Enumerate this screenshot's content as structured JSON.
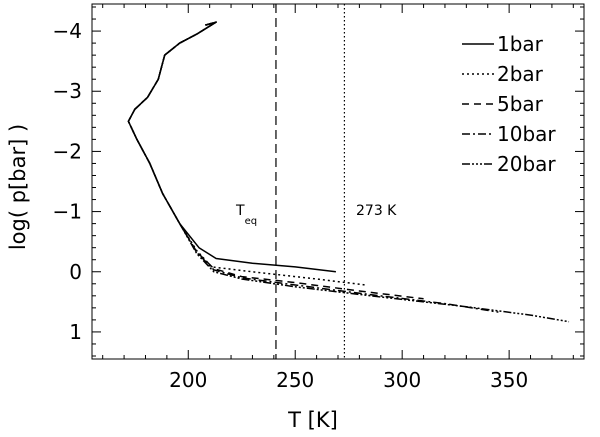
{
  "chart_data": {
    "type": "line",
    "xlabel": "T [K]",
    "ylabel": "log( p[bar] )",
    "xlim": [
      155,
      385
    ],
    "ylim": [
      1.45,
      -4.45
    ],
    "x_ticks": [
      200,
      250,
      300,
      350
    ],
    "y_ticks": [
      -4,
      -3,
      -2,
      -1,
      0,
      1
    ],
    "x_tick_labels": [
      "200",
      "250",
      "300",
      "350"
    ],
    "y_tick_labels": [
      "−4",
      "−3",
      "−2",
      "−1",
      "0",
      "1"
    ],
    "legend_position": "top-right",
    "reference_lines": [
      {
        "label_main": "T",
        "label_sub": "eq",
        "x": 241,
        "style": "dashed"
      },
      {
        "label_main": "273 K",
        "x": 273,
        "style": "dotted"
      }
    ],
    "series": [
      {
        "name": "1bar",
        "dash": "none",
        "points": [
          [
            208,
            -4.1
          ],
          [
            213,
            -4.15
          ],
          [
            204,
            -3.95
          ],
          [
            196,
            -3.8
          ],
          [
            189,
            -3.6
          ],
          [
            186,
            -3.2
          ],
          [
            181,
            -2.9
          ],
          [
            175,
            -2.7
          ],
          [
            172,
            -2.5
          ],
          [
            176,
            -2.2
          ],
          [
            182,
            -1.8
          ],
          [
            188,
            -1.3
          ],
          [
            196,
            -0.8
          ],
          [
            205,
            -0.4
          ],
          [
            213,
            -0.22
          ],
          [
            230,
            -0.14
          ],
          [
            250,
            -0.08
          ],
          [
            269,
            0.0
          ]
        ]
      },
      {
        "name": "2bar",
        "dash": "2,3",
        "points": [
          [
            208,
            -4.1
          ],
          [
            213,
            -4.15
          ],
          [
            204,
            -3.95
          ],
          [
            196,
            -3.8
          ],
          [
            189,
            -3.6
          ],
          [
            186,
            -3.2
          ],
          [
            181,
            -2.9
          ],
          [
            175,
            -2.7
          ],
          [
            172,
            -2.5
          ],
          [
            176,
            -2.2
          ],
          [
            182,
            -1.8
          ],
          [
            188,
            -1.3
          ],
          [
            196,
            -0.8
          ],
          [
            204,
            -0.35
          ],
          [
            211,
            -0.08
          ],
          [
            230,
            0.0
          ],
          [
            260,
            0.12
          ],
          [
            283,
            0.22
          ]
        ]
      },
      {
        "name": "5bar",
        "dash": "7,5",
        "points": [
          [
            208,
            -4.1
          ],
          [
            213,
            -4.15
          ],
          [
            204,
            -3.95
          ],
          [
            196,
            -3.8
          ],
          [
            189,
            -3.6
          ],
          [
            186,
            -3.2
          ],
          [
            181,
            -2.9
          ],
          [
            175,
            -2.7
          ],
          [
            172,
            -2.5
          ],
          [
            176,
            -2.2
          ],
          [
            182,
            -1.8
          ],
          [
            188,
            -1.3
          ],
          [
            196,
            -0.8
          ],
          [
            204,
            -0.33
          ],
          [
            212,
            -0.05
          ],
          [
            225,
            0.08
          ],
          [
            250,
            0.18
          ],
          [
            280,
            0.32
          ],
          [
            310,
            0.45
          ]
        ]
      },
      {
        "name": "10bar",
        "dash": "8,3,2,3",
        "points": [
          [
            208,
            -4.1
          ],
          [
            213,
            -4.15
          ],
          [
            204,
            -3.95
          ],
          [
            196,
            -3.8
          ],
          [
            189,
            -3.6
          ],
          [
            186,
            -3.2
          ],
          [
            181,
            -2.9
          ],
          [
            175,
            -2.7
          ],
          [
            172,
            -2.5
          ],
          [
            176,
            -2.2
          ],
          [
            182,
            -1.8
          ],
          [
            188,
            -1.3
          ],
          [
            196,
            -0.8
          ],
          [
            204,
            -0.32
          ],
          [
            212,
            -0.03
          ],
          [
            225,
            0.1
          ],
          [
            250,
            0.22
          ],
          [
            285,
            0.38
          ],
          [
            320,
            0.53
          ],
          [
            345,
            0.67
          ]
        ]
      },
      {
        "name": "20bar",
        "dash": "8,2,2,2,2,2,2,2",
        "points": [
          [
            208,
            -4.1
          ],
          [
            213,
            -4.15
          ],
          [
            204,
            -3.95
          ],
          [
            196,
            -3.8
          ],
          [
            189,
            -3.6
          ],
          [
            186,
            -3.2
          ],
          [
            181,
            -2.9
          ],
          [
            175,
            -2.7
          ],
          [
            172,
            -2.5
          ],
          [
            176,
            -2.2
          ],
          [
            182,
            -1.8
          ],
          [
            188,
            -1.3
          ],
          [
            196,
            -0.8
          ],
          [
            204,
            -0.3
          ],
          [
            212,
            0.0
          ],
          [
            225,
            0.12
          ],
          [
            250,
            0.25
          ],
          [
            290,
            0.42
          ],
          [
            330,
            0.58
          ],
          [
            360,
            0.72
          ],
          [
            378,
            0.83
          ]
        ]
      }
    ]
  }
}
